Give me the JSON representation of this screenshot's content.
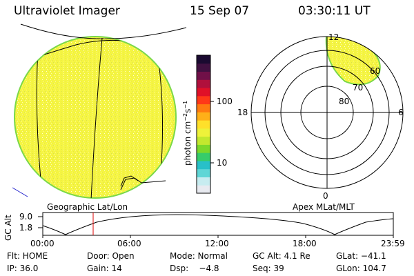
{
  "header": {
    "instrument": "Ultraviolet Imager",
    "date": "15 Sep 07",
    "time": "03:30:11 UT"
  },
  "colorbar": {
    "unit_label": "photon cm",
    "unit_sup1": "−2",
    "unit_mid": "s",
    "unit_sup2": "−1",
    "tick_100": "100",
    "tick_10": "10",
    "colors": [
      "#e8eaf0",
      "#c7ecf0",
      "#5fd6d6",
      "#28c0c8",
      "#36cc6a",
      "#7ad82a",
      "#c2e82e",
      "#eef23a",
      "#ffe02a",
      "#ffb018",
      "#ff7a10",
      "#ff3818",
      "#e01028",
      "#b0103c",
      "#701048",
      "#401040",
      "#1a0a30"
    ]
  },
  "globe": {
    "fill_color": "#f5f542",
    "rim_color": "#7ad84a",
    "label": "Geographic Lat/Lon"
  },
  "polar": {
    "label": "Apex MLat/MLT",
    "mlt_labels": {
      "top": "12",
      "left": "18",
      "right": "6",
      "bottom": "0"
    },
    "mlat_labels": [
      "80",
      "70",
      "60"
    ]
  },
  "altitude": {
    "axis_label": "GC Alt",
    "ytick_top": "9.0",
    "ytick_bottom": "1.8",
    "x_ticks": [
      "00:00",
      "06:00",
      "12:00",
      "18:00",
      "23:59"
    ],
    "current_time_marker_color": "#dd0000"
  },
  "status": {
    "flt": "Flt: HOME",
    "door": "Door: Open",
    "mode": "Mode: Normal",
    "gc_alt": "GC Alt: 4.1 Re",
    "glat": "GLat: −41.1",
    "ip": "IP: 36.0",
    "gain": "Gain: 14",
    "dsp": "Dsp:    −4.8",
    "seq": "Seq: 39",
    "glon": "GLon: 104.7"
  }
}
